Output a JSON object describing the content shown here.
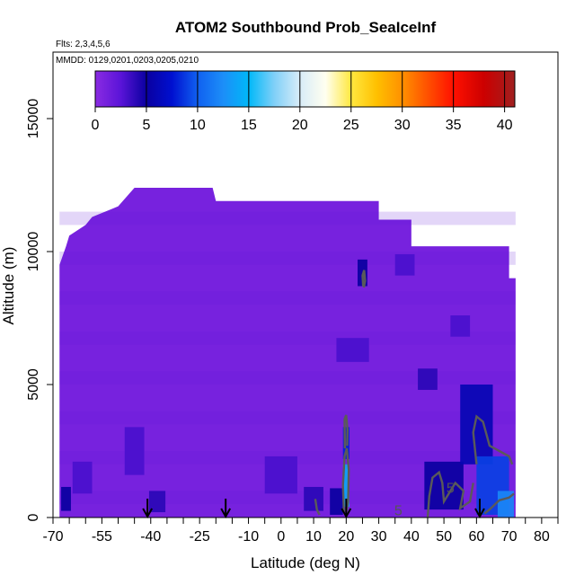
{
  "chart_data": {
    "type": "heatmap",
    "title": "ATOM2 Southbound Prob_SeaIceInf",
    "subtitle_flights": "Flts: 2,3,4,5,6",
    "subtitle_dates": "MMDD: 0129,0201,0203,0205,0210",
    "xlabel": "Latitude (deg N)",
    "ylabel": "Altitude (m)",
    "xlim": [
      -70,
      85
    ],
    "ylim": [
      0,
      17500
    ],
    "x_ticks": [
      -70,
      -55,
      -40,
      -25,
      -10,
      0,
      10,
      20,
      30,
      40,
      50,
      60,
      70,
      80
    ],
    "x_minor_ticks": [
      -65,
      -60,
      -50,
      -45,
      -35,
      -30,
      -20,
      -15,
      -5,
      5,
      15,
      25,
      35,
      45,
      55,
      65,
      75,
      85
    ],
    "y_ticks": [
      0,
      5000,
      10000,
      15000
    ],
    "colorbar": {
      "ticks": [
        0,
        5,
        10,
        15,
        20,
        25,
        30,
        35,
        40
      ],
      "range": [
        0,
        41
      ],
      "stops": [
        {
          "v": 0,
          "c": "#8a2be2"
        },
        {
          "v": 2.5,
          "c": "#5a14d8"
        },
        {
          "v": 5,
          "c": "#0a00a0"
        },
        {
          "v": 7.5,
          "c": "#0010d0"
        },
        {
          "v": 10,
          "c": "#1060f0"
        },
        {
          "v": 12.5,
          "c": "#1c8ef8"
        },
        {
          "v": 15,
          "c": "#00b8f8"
        },
        {
          "v": 17.5,
          "c": "#80d0f8"
        },
        {
          "v": 20,
          "c": "#d8ecf8"
        },
        {
          "v": 22.5,
          "c": "#fffff0"
        },
        {
          "v": 25,
          "c": "#ffe840"
        },
        {
          "v": 27.5,
          "c": "#ffc000"
        },
        {
          "v": 30,
          "c": "#ff9000"
        },
        {
          "v": 32.5,
          "c": "#ff5000"
        },
        {
          "v": 35,
          "c": "#ff1000"
        },
        {
          "v": 38,
          "c": "#cc0000"
        },
        {
          "v": 41,
          "c": "#a02020"
        }
      ]
    },
    "field": {
      "background_value": 1,
      "altitude_profile": [
        {
          "lat": -68,
          "top": 8700
        },
        {
          "lat": -68,
          "top": 9500
        },
        {
          "lat": -66,
          "top": 10200
        },
        {
          "lat": -65,
          "top": 10600
        },
        {
          "lat": -60,
          "top": 11000
        },
        {
          "lat": -58,
          "top": 11300
        },
        {
          "lat": -50,
          "top": 11700
        },
        {
          "lat": -45,
          "top": 12400
        },
        {
          "lat": -21,
          "top": 12400
        },
        {
          "lat": -20,
          "top": 11900
        },
        {
          "lat": 30,
          "top": 11900
        },
        {
          "lat": 30,
          "top": 11200
        },
        {
          "lat": 40,
          "top": 11200
        },
        {
          "lat": 40,
          "top": 10200
        },
        {
          "lat": 70,
          "top": 10200
        },
        {
          "lat": 70,
          "top": 9000
        },
        {
          "lat": 72,
          "top": 9000
        },
        {
          "lat": 72,
          "top": 0
        }
      ],
      "hotspots": [
        {
          "lat": -66,
          "alt": 700,
          "w": 3,
          "h": 900,
          "value": 5
        },
        {
          "lat": -61,
          "alt": 1500,
          "w": 6,
          "h": 1200,
          "value": 3
        },
        {
          "lat": -45,
          "alt": 2500,
          "w": 6,
          "h": 1800,
          "value": 3
        },
        {
          "lat": -38,
          "alt": 600,
          "w": 5,
          "h": 800,
          "value": 4
        },
        {
          "lat": 20,
          "alt": 1200,
          "w": 2,
          "h": 1600,
          "value": 14
        },
        {
          "lat": 20,
          "alt": 2800,
          "w": 2,
          "h": 1200,
          "value": 8
        },
        {
          "lat": 17,
          "alt": 600,
          "w": 4,
          "h": 1000,
          "value": 5
        },
        {
          "lat": 22,
          "alt": 6300,
          "w": 10,
          "h": 900,
          "value": 3
        },
        {
          "lat": 25,
          "alt": 9200,
          "w": 3,
          "h": 1000,
          "value": 5
        },
        {
          "lat": 38,
          "alt": 9500,
          "w": 6,
          "h": 800,
          "value": 3
        },
        {
          "lat": 45,
          "alt": 5200,
          "w": 6,
          "h": 800,
          "value": 4
        },
        {
          "lat": 55,
          "alt": 7200,
          "w": 6,
          "h": 800,
          "value": 3
        },
        {
          "lat": 50,
          "alt": 1200,
          "w": 12,
          "h": 1800,
          "value": 5
        },
        {
          "lat": 60,
          "alt": 3500,
          "w": 10,
          "h": 3000,
          "value": 6
        },
        {
          "lat": 65,
          "alt": 1200,
          "w": 10,
          "h": 2200,
          "value": 9
        },
        {
          "lat": 69,
          "alt": 500,
          "w": 5,
          "h": 1000,
          "value": 12
        },
        {
          "lat": 10,
          "alt": 700,
          "w": 6,
          "h": 900,
          "value": 4
        },
        {
          "lat": 0,
          "alt": 1600,
          "w": 10,
          "h": 1400,
          "value": 3
        }
      ]
    },
    "contours": [
      {
        "level": 5,
        "points": [
          [
            19.3,
            200
          ],
          [
            19.0,
            1200
          ],
          [
            19.5,
            2300
          ],
          [
            20.2,
            2600
          ],
          [
            20.8,
            1800
          ],
          [
            20.6,
            600
          ],
          [
            20.0,
            200
          ]
        ]
      },
      {
        "level": 5,
        "points": [
          [
            19.6,
            2600
          ],
          [
            19.5,
            3700
          ],
          [
            20.0,
            3850
          ],
          [
            20.4,
            3300
          ],
          [
            20.3,
            2700
          ]
        ]
      },
      {
        "level": 5,
        "points": [
          [
            25.2,
            8700
          ],
          [
            25.0,
            9100
          ],
          [
            25.5,
            9300
          ],
          [
            25.8,
            8900
          ],
          [
            25.4,
            8650
          ]
        ]
      },
      {
        "level": 5,
        "points": [
          [
            60.0,
            2000
          ],
          [
            59.0,
            3200
          ],
          [
            60.0,
            3800
          ],
          [
            62.0,
            3600
          ],
          [
            64.0,
            2700
          ],
          [
            70.0,
            2300
          ],
          [
            71.0,
            2000
          ]
        ]
      },
      {
        "level": 5,
        "points": [
          [
            45.0,
            0
          ],
          [
            45.5,
            800
          ],
          [
            46.5,
            1500
          ],
          [
            48.5,
            1700
          ],
          [
            49.5,
            1300
          ],
          [
            50.0,
            600
          ],
          [
            51.5,
            900
          ],
          [
            53.5,
            1300
          ],
          [
            56.0,
            1000
          ],
          [
            55.0,
            350
          ],
          [
            58.0,
            600
          ],
          [
            59.0,
            1300
          ]
        ]
      },
      {
        "level": 5,
        "points": [
          [
            10.5,
            700
          ],
          [
            11.0,
            300
          ],
          [
            11.8,
            100
          ]
        ]
      },
      {
        "level": 5,
        "points": [
          [
            62.5,
            150
          ],
          [
            64.0,
            300
          ],
          [
            67.0,
            650
          ],
          [
            70.0,
            750
          ],
          [
            71.5,
            900
          ]
        ]
      }
    ],
    "contour_labels": [
      {
        "text": "5",
        "lat": 36,
        "alt": 250
      },
      {
        "text": "5",
        "lat": 52,
        "alt": 1100
      }
    ],
    "annotations": [
      {
        "marker": "down-arrow",
        "lat": -41
      },
      {
        "marker": "down-arrow",
        "lat": -17
      },
      {
        "marker": "down-arrow",
        "lat": 20
      },
      {
        "marker": "down-arrow",
        "lat": 61
      }
    ],
    "legend": "top (colorbar)",
    "grid": false
  }
}
